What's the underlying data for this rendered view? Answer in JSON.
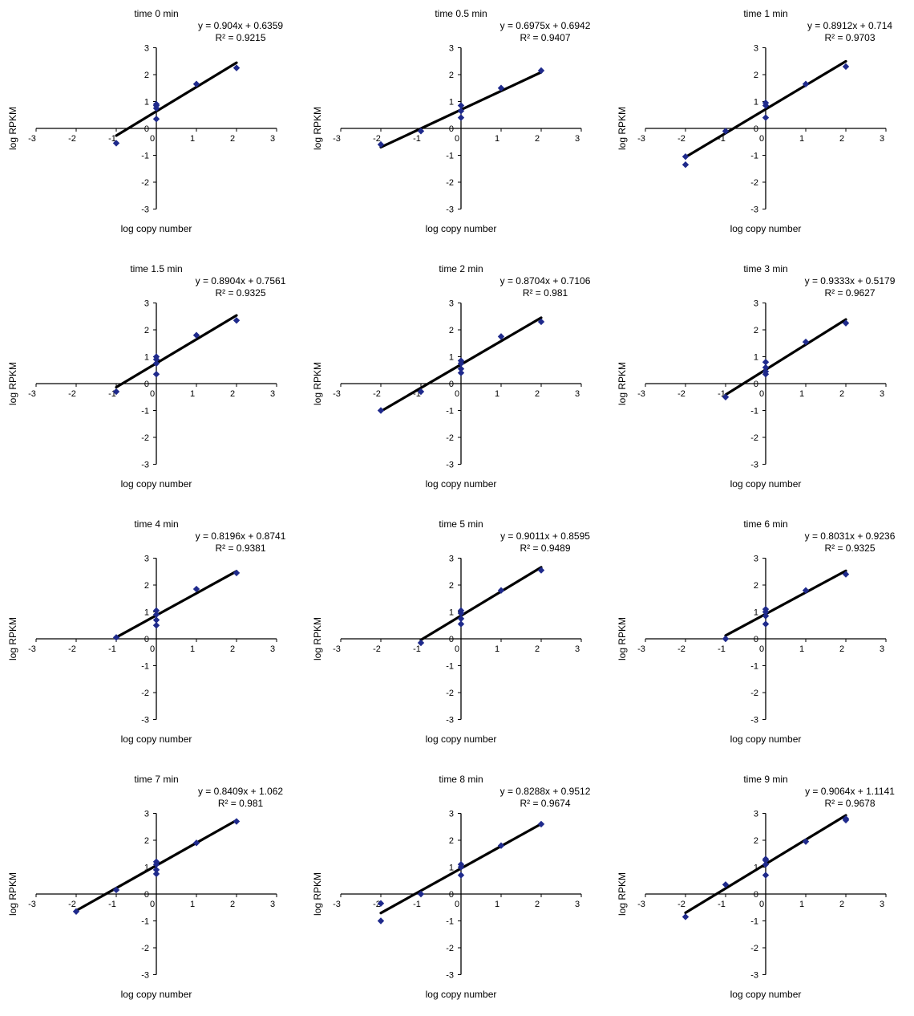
{
  "chart_data": [
    {
      "type": "scatter",
      "title": "time 0 min",
      "xlabel": "log copy number",
      "ylabel": "log RPKM",
      "xlim": [
        -3,
        3
      ],
      "ylim": [
        -3,
        3
      ],
      "ticks": [
        "-3",
        "-2",
        "-1",
        "0",
        "1",
        "2",
        "3"
      ],
      "equation": "y = 0.904x + 0.6359",
      "r2": "R² = 0.9215",
      "trendline": {
        "slope": 0.904,
        "intercept": 0.6359,
        "x_range": [
          -1,
          2
        ]
      },
      "x": [
        -1,
        0,
        0,
        0,
        0,
        1,
        2
      ],
      "y": [
        -0.55,
        0.35,
        0.75,
        0.85,
        0.9,
        1.65,
        2.25
      ],
      "grid": false,
      "legend": "none",
      "marker_color": "#1f2a8c"
    },
    {
      "type": "scatter",
      "title": "time 0.5 min",
      "xlabel": "log copy number",
      "ylabel": "log RPKM",
      "xlim": [
        -3,
        3
      ],
      "ylim": [
        -3,
        3
      ],
      "ticks": [
        "-3",
        "-2",
        "-1",
        "0",
        "1",
        "2",
        "3"
      ],
      "equation": "y = 0.6975x + 0.6942",
      "r2": "R² = 0.9407",
      "trendline": {
        "slope": 0.6975,
        "intercept": 0.6942,
        "x_range": [
          -2,
          2
        ]
      },
      "x": [
        -2,
        -1,
        0,
        0,
        0,
        1,
        2
      ],
      "y": [
        -0.6,
        -0.1,
        0.4,
        0.65,
        0.85,
        1.5,
        2.15
      ],
      "grid": false,
      "legend": "none",
      "marker_color": "#1f2a8c"
    },
    {
      "type": "scatter",
      "title": "time 1 min",
      "xlabel": "log copy number",
      "ylabel": "log RPKM",
      "xlim": [
        -3,
        3
      ],
      "ylim": [
        -3,
        3
      ],
      "ticks": [
        "-3",
        "-2",
        "-1",
        "0",
        "1",
        "2",
        "3"
      ],
      "equation": "y = 0.8912x + 0.714",
      "r2": "R² = 0.9703",
      "trendline": {
        "slope": 0.8912,
        "intercept": 0.714,
        "x_range": [
          -2,
          2
        ]
      },
      "x": [
        -2,
        -2,
        -1,
        0,
        0,
        0,
        1,
        2
      ],
      "y": [
        -1.05,
        -1.35,
        -0.1,
        0.4,
        0.85,
        0.95,
        1.65,
        2.3
      ],
      "grid": false,
      "legend": "none",
      "marker_color": "#1f2a8c"
    },
    {
      "type": "scatter",
      "title": "time 1.5 min",
      "xlabel": "log copy number",
      "ylabel": "log RPKM",
      "xlim": [
        -3,
        3
      ],
      "ylim": [
        -3,
        3
      ],
      "ticks": [
        "-3",
        "-2",
        "-1",
        "0",
        "1",
        "2",
        "3"
      ],
      "equation": "y = 0.8904x + 0.7561",
      "r2": "R² = 0.9325",
      "trendline": {
        "slope": 0.8904,
        "intercept": 0.7561,
        "x_range": [
          -1,
          2
        ]
      },
      "x": [
        -1,
        0,
        0,
        0,
        0,
        1,
        2
      ],
      "y": [
        -0.3,
        0.35,
        0.75,
        0.9,
        1.0,
        1.8,
        2.35
      ],
      "grid": false,
      "legend": "none",
      "marker_color": "#1f2a8c"
    },
    {
      "type": "scatter",
      "title": "time 2 min",
      "xlabel": "log copy number",
      "ylabel": "log RPKM",
      "xlim": [
        -3,
        3
      ],
      "ylim": [
        -3,
        3
      ],
      "ticks": [
        "-3",
        "-2",
        "-1",
        "0",
        "1",
        "2",
        "3"
      ],
      "equation": "y = 0.8704x + 0.7106",
      "r2": "R² = 0.981",
      "trendline": {
        "slope": 0.8704,
        "intercept": 0.7106,
        "x_range": [
          -2,
          2
        ]
      },
      "x": [
        -2,
        -1,
        0,
        0,
        0,
        0,
        1,
        2
      ],
      "y": [
        -1.0,
        -0.3,
        0.4,
        0.55,
        0.75,
        0.85,
        1.75,
        2.3
      ],
      "grid": false,
      "legend": "none",
      "marker_color": "#1f2a8c"
    },
    {
      "type": "scatter",
      "title": "time 3 min",
      "xlabel": "log copy number",
      "ylabel": "log RPKM",
      "xlim": [
        -3,
        3
      ],
      "ylim": [
        -3,
        3
      ],
      "ticks": [
        "-3",
        "-2",
        "-1",
        "0",
        "1",
        "2",
        "3"
      ],
      "equation": "y = 0.9333x + 0.5179",
      "r2": "R² = 0.9627",
      "trendline": {
        "slope": 0.9333,
        "intercept": 0.5179,
        "x_range": [
          -1,
          2
        ]
      },
      "x": [
        -1,
        0,
        0,
        0,
        0,
        1,
        2
      ],
      "y": [
        -0.5,
        0.35,
        0.45,
        0.6,
        0.8,
        1.55,
        2.25
      ],
      "grid": false,
      "legend": "none",
      "marker_color": "#1f2a8c"
    },
    {
      "type": "scatter",
      "title": "time 4 min",
      "xlabel": "log copy number",
      "ylabel": "log RPKM",
      "xlim": [
        -3,
        3
      ],
      "ylim": [
        -3,
        3
      ],
      "ticks": [
        "-3",
        "-2",
        "-1",
        "0",
        "1",
        "2",
        "3"
      ],
      "equation": "y = 0.8196x + 0.8741",
      "r2": "R² = 0.9381",
      "trendline": {
        "slope": 0.8196,
        "intercept": 0.8741,
        "x_range": [
          -1,
          2
        ]
      },
      "x": [
        -1,
        0,
        0,
        0,
        0,
        1,
        2
      ],
      "y": [
        0.05,
        0.5,
        0.7,
        0.9,
        1.05,
        1.85,
        2.45
      ],
      "grid": false,
      "legend": "none",
      "marker_color": "#1f2a8c"
    },
    {
      "type": "scatter",
      "title": "time 5 min",
      "xlabel": "log copy number",
      "ylabel": "log RPKM",
      "xlim": [
        -3,
        3
      ],
      "ylim": [
        -3,
        3
      ],
      "ticks": [
        "-3",
        "-2",
        "-1",
        "0",
        "1",
        "2",
        "3"
      ],
      "equation": "y = 0.9011x + 0.8595",
      "r2": "R² = 0.9489",
      "trendline": {
        "slope": 0.9011,
        "intercept": 0.8595,
        "x_range": [
          -1,
          2
        ]
      },
      "x": [
        -1,
        0,
        0,
        0,
        0,
        1,
        2
      ],
      "y": [
        -0.15,
        0.55,
        0.75,
        0.95,
        1.05,
        1.8,
        2.55
      ],
      "grid": false,
      "legend": "none",
      "marker_color": "#1f2a8c"
    },
    {
      "type": "scatter",
      "title": "time 6 min",
      "xlabel": "log copy number",
      "ylabel": "log RPKM",
      "xlim": [
        -3,
        3
      ],
      "ylim": [
        -3,
        3
      ],
      "ticks": [
        "-3",
        "-2",
        "-1",
        "0",
        "1",
        "2",
        "3"
      ],
      "equation": "y = 0.8031x + 0.9236",
      "r2": "R² = 0.9325",
      "trendline": {
        "slope": 0.8031,
        "intercept": 0.9236,
        "x_range": [
          -1,
          2
        ]
      },
      "x": [
        -1,
        0,
        0,
        0,
        0,
        1,
        2
      ],
      "y": [
        0.0,
        0.55,
        0.85,
        1.0,
        1.1,
        1.8,
        2.4
      ],
      "grid": false,
      "legend": "none",
      "marker_color": "#1f2a8c"
    },
    {
      "type": "scatter",
      "title": "time 7 min",
      "xlabel": "log copy number",
      "ylabel": "log RPKM",
      "xlim": [
        -3,
        3
      ],
      "ylim": [
        -3,
        3
      ],
      "ticks": [
        "-3",
        "-2",
        "-1",
        "0",
        "1",
        "2",
        "3"
      ],
      "equation": "y = 0.8409x + 1.062",
      "r2": "R² = 0.981",
      "trendline": {
        "slope": 0.8409,
        "intercept": 1.062,
        "x_range": [
          -2,
          2
        ]
      },
      "x": [
        -2,
        -1,
        0,
        0,
        0,
        0,
        1,
        2
      ],
      "y": [
        -0.65,
        0.15,
        0.75,
        0.9,
        1.1,
        1.2,
        1.9,
        2.7
      ],
      "grid": false,
      "legend": "none",
      "marker_color": "#1f2a8c"
    },
    {
      "type": "scatter",
      "title": "time 8 min",
      "xlabel": "log copy number",
      "ylabel": "log RPKM",
      "xlim": [
        -3,
        3
      ],
      "ylim": [
        -3,
        3
      ],
      "ticks": [
        "-3",
        "-2",
        "-1",
        "0",
        "1",
        "2",
        "3"
      ],
      "equation": "y = 0.8288x + 0.9512",
      "r2": "R² = 0.9674",
      "trendline": {
        "slope": 0.8288,
        "intercept": 0.9512,
        "x_range": [
          -2,
          2
        ]
      },
      "x": [
        -2,
        -2,
        -1,
        0,
        0,
        0,
        1,
        2
      ],
      "y": [
        -0.35,
        -1.0,
        0.0,
        0.7,
        1.0,
        1.1,
        1.8,
        2.6
      ],
      "grid": false,
      "legend": "none",
      "marker_color": "#1f2a8c"
    },
    {
      "type": "scatter",
      "title": "time 9 min",
      "xlabel": "log copy number",
      "ylabel": "log RPKM",
      "xlim": [
        -3,
        3
      ],
      "ylim": [
        -3,
        3
      ],
      "ticks": [
        "-3",
        "-2",
        "-1",
        "0",
        "1",
        "2",
        "3"
      ],
      "equation": "y = 0.9064x + 1.1141",
      "r2": "R² = 0.9678",
      "trendline": {
        "slope": 0.9064,
        "intercept": 1.1141,
        "x_range": [
          -2,
          2
        ]
      },
      "x": [
        -2,
        -1,
        0,
        0,
        0,
        0,
        1,
        2,
        2
      ],
      "y": [
        -0.85,
        0.35,
        0.7,
        1.1,
        1.25,
        1.3,
        1.95,
        2.75,
        2.8
      ],
      "grid": false,
      "legend": "none",
      "marker_color": "#1f2a8c"
    }
  ]
}
